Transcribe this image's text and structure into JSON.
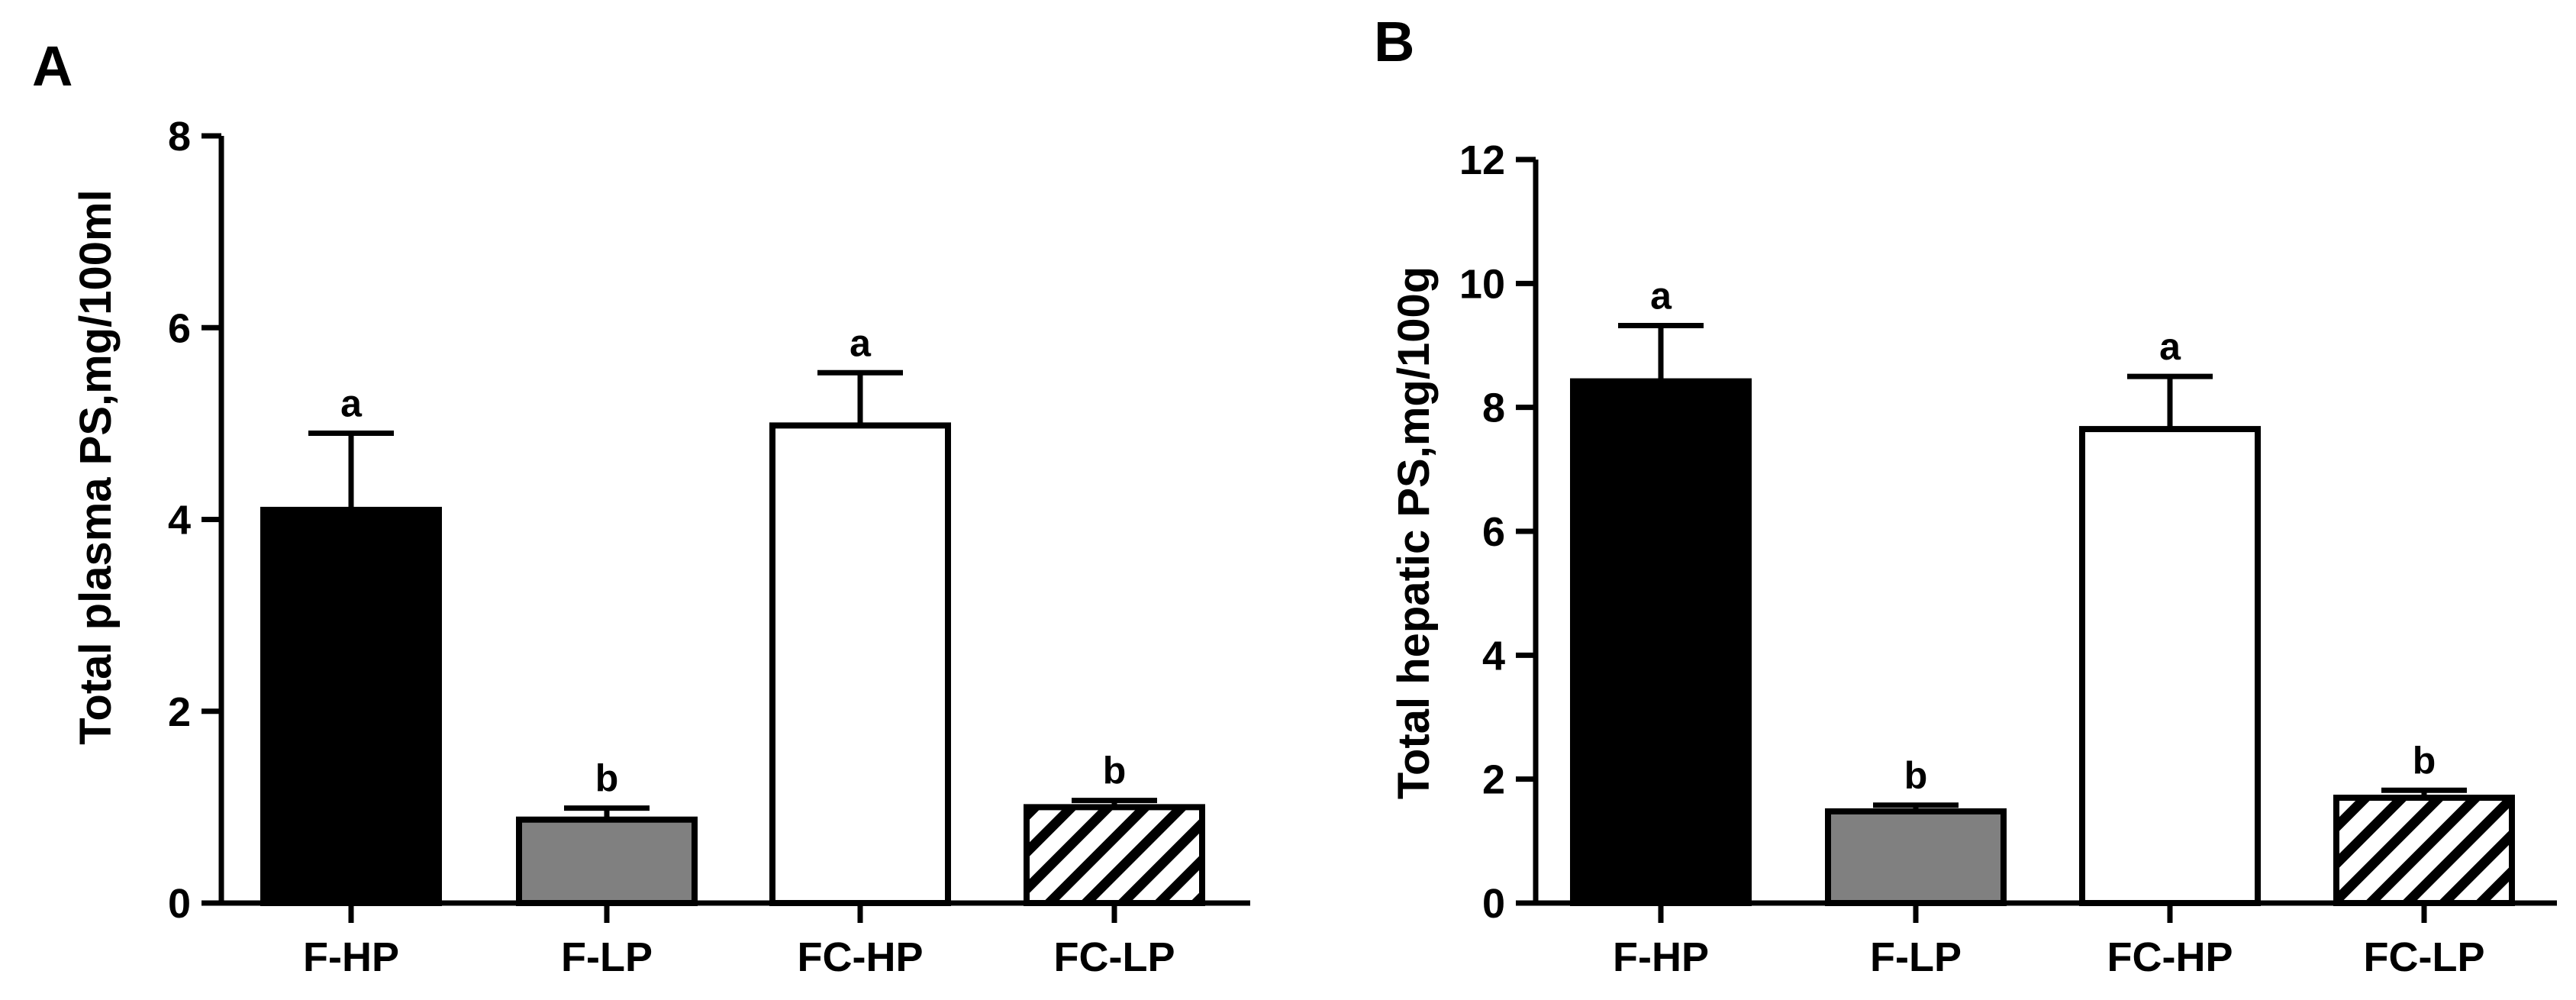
{
  "chart_data": [
    {
      "type": "bar",
      "panel_label": "A",
      "ylabel": "Total plasma PS,mg/100ml",
      "ylim": [
        0,
        8
      ],
      "yticks": [
        "0",
        "2",
        "4",
        "6",
        "8"
      ],
      "categories": [
        "F-HP",
        "F-LP",
        "FC-HP",
        "FC-LP"
      ],
      "values": [
        4.1,
        0.87,
        4.98,
        1.0
      ],
      "errors": [
        0.8,
        0.12,
        0.55,
        0.07
      ],
      "letters": [
        "a",
        "b",
        "a",
        "b"
      ],
      "fills": [
        "#000000",
        "#808080",
        "#ffffff",
        "hatch"
      ]
    },
    {
      "type": "bar",
      "panel_label": "B",
      "ylabel": "Total hepatic PS,mg/100g",
      "ylim": [
        0,
        12
      ],
      "yticks": [
        "0",
        "2",
        "4",
        "6",
        "8",
        "10",
        "12"
      ],
      "categories": [
        "F-HP",
        "F-LP",
        "FC-HP",
        "FC-LP"
      ],
      "values": [
        8.42,
        1.48,
        7.65,
        1.7
      ],
      "errors": [
        0.9,
        0.1,
        0.85,
        0.12
      ],
      "letters": [
        "a",
        "b",
        "a",
        "b"
      ],
      "fills": [
        "#000000",
        "#808080",
        "#ffffff",
        "hatch"
      ]
    }
  ],
  "colors": {
    "stroke": "#000000",
    "gray_bar": "#808080",
    "background": "#ffffff"
  }
}
